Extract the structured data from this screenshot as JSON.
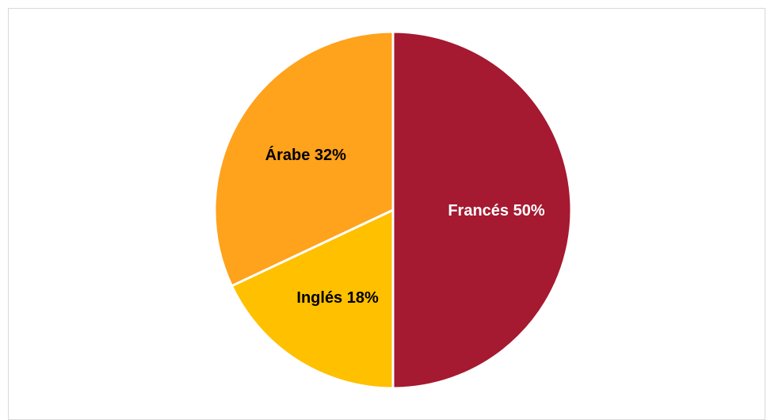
{
  "chart_data": {
    "type": "pie",
    "slices": [
      {
        "label": "Francés 50%",
        "name": "Francés",
        "value": 50,
        "color": "#A51931",
        "label_color": "#ffffff"
      },
      {
        "label": "Inglés 18%",
        "name": "Inglés",
        "value": 18,
        "color": "#FFC000",
        "label_color": "#000000"
      },
      {
        "label": "Árabe 32%",
        "name": "Árabe",
        "value": 32,
        "color": "#FFA21C",
        "label_color": "#000000"
      }
    ],
    "start_angle_deg": 0,
    "direction": "clockwise",
    "legend": "none",
    "title": ""
  }
}
